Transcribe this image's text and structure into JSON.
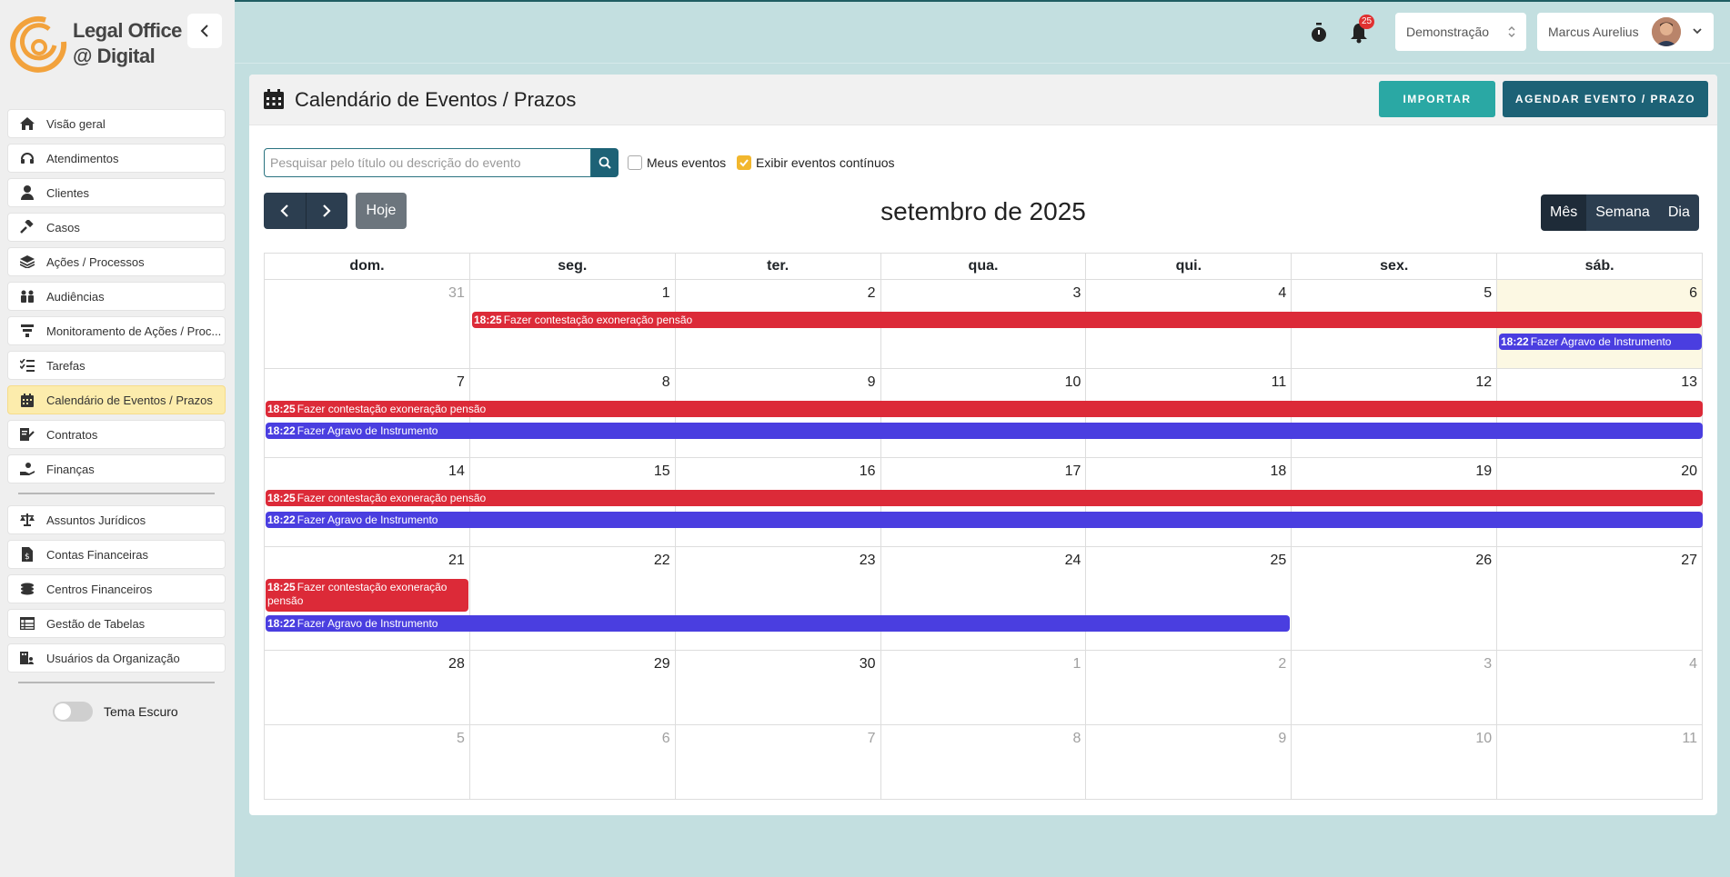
{
  "app": {
    "logo_line1": "Legal Office",
    "logo_line2": "@ Digital"
  },
  "sidebar": {
    "items": [
      {
        "label": "Visão geral",
        "icon": "home-icon"
      },
      {
        "label": "Atendimentos",
        "icon": "headset-icon"
      },
      {
        "label": "Clientes",
        "icon": "user-icon"
      },
      {
        "label": "Casos",
        "icon": "gavel-icon"
      },
      {
        "label": "Ações / Processos",
        "icon": "layers-icon"
      },
      {
        "label": "Audiências",
        "icon": "people-icon"
      },
      {
        "label": "Monitoramento de Ações / Proc...",
        "icon": "filter-icon"
      },
      {
        "label": "Tarefas",
        "icon": "tasks-icon"
      },
      {
        "label": "Calendário de Eventos / Prazos",
        "icon": "calendar-icon",
        "active": true
      },
      {
        "label": "Contratos",
        "icon": "contract-icon"
      },
      {
        "label": "Finanças",
        "icon": "hand-money-icon"
      }
    ],
    "items2": [
      {
        "label": "Assuntos Jurídicos",
        "icon": "scale-icon"
      },
      {
        "label": "Contas Financeiras",
        "icon": "file-dollar-icon"
      },
      {
        "label": "Centros Financeiros",
        "icon": "coins-icon"
      },
      {
        "label": "Gestão de Tabelas",
        "icon": "table-icon"
      },
      {
        "label": "Usuários da Organização",
        "icon": "users-building-icon"
      }
    ],
    "dark_theme_label": "Tema Escuro"
  },
  "header": {
    "notification_count": "25",
    "org_name": "Demonstração",
    "user_name": "Marcus Aurelius"
  },
  "page": {
    "title": "Calendário de Eventos / Prazos",
    "import_label": "IMPORTAR",
    "schedule_label": "AGENDAR EVENTO / PRAZO",
    "search_placeholder": "Pesquisar pelo título ou descrição do evento",
    "my_events_label": "Meus eventos",
    "continuous_label": "Exibir eventos contínuos",
    "today_label": "Hoje",
    "month_title": "setembro de 2025",
    "views": [
      "Mês",
      "Semana",
      "Dia"
    ]
  },
  "calendar": {
    "weekdays": [
      "dom.",
      "seg.",
      "ter.",
      "qua.",
      "qui.",
      "sex.",
      "sáb."
    ],
    "weeks": [
      [
        "31",
        "1",
        "2",
        "3",
        "4",
        "5",
        "6"
      ],
      [
        "7",
        "8",
        "9",
        "10",
        "11",
        "12",
        "13"
      ],
      [
        "14",
        "15",
        "16",
        "17",
        "18",
        "19",
        "20"
      ],
      [
        "21",
        "22",
        "23",
        "24",
        "25",
        "26",
        "27"
      ],
      [
        "28",
        "29",
        "30",
        "1",
        "2",
        "3",
        "4"
      ],
      [
        "5",
        "6",
        "7",
        "8",
        "9",
        "10",
        "11"
      ]
    ],
    "events": {
      "e1_time": "18:25",
      "e1_title": "Fazer contestação exoneração pensão",
      "e2_time": "18:22",
      "e2_title": "Fazer Agravo de Instrumento"
    },
    "colors": {
      "red": "#dc2a38",
      "blue": "#4a3ee0",
      "today": "#fcf8e3"
    }
  }
}
